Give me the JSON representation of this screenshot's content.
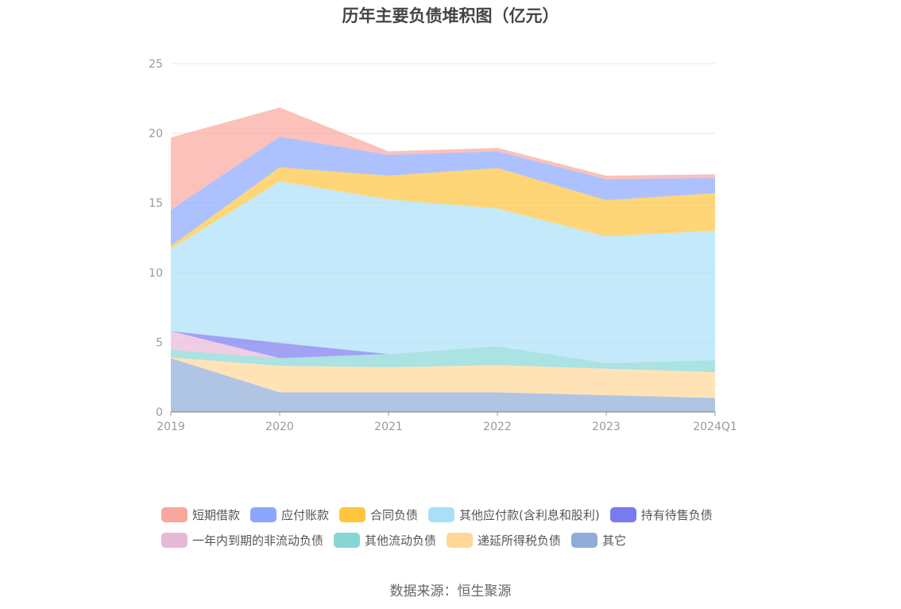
{
  "chart_data": {
    "type": "area",
    "stacked": true,
    "title": "历年主要负债堆积图（亿元）",
    "categories": [
      "2019",
      "2020",
      "2021",
      "2022",
      "2023",
      "2024Q1"
    ],
    "ylim": [
      0,
      25
    ],
    "yticks": [
      0,
      5,
      10,
      15,
      20,
      25
    ],
    "grid": true,
    "legend_position": "bottom",
    "series": [
      {
        "name": "其它",
        "color": "#8fadd9",
        "values": [
          3.85,
          1.4,
          1.4,
          1.4,
          1.2,
          1.0
        ]
      },
      {
        "name": "递延所得税负债",
        "color": "#ffd799",
        "values": [
          0.05,
          1.9,
          1.8,
          1.95,
          1.9,
          1.85
        ]
      },
      {
        "name": "其他流动负债",
        "color": "#87d6d6",
        "values": [
          0.55,
          0.55,
          0.95,
          1.35,
          0.4,
          0.85
        ]
      },
      {
        "name": "一年内到期的非流动负债",
        "color": "#e8b8d8",
        "values": [
          1.35,
          0.0,
          0.0,
          0.0,
          0.0,
          0.0
        ]
      },
      {
        "name": "持有待售负债",
        "color": "#7a7af0",
        "values": [
          0.0,
          1.1,
          0.0,
          0.0,
          0.0,
          0.0
        ]
      },
      {
        "name": "其他应付款(含利息和股利)",
        "color": "#a9e0f8",
        "values": [
          5.9,
          11.6,
          11.1,
          9.9,
          9.1,
          9.3
        ]
      },
      {
        "name": "合同负债",
        "color": "#ffc53d",
        "values": [
          0.2,
          1.0,
          1.7,
          2.9,
          2.6,
          2.7
        ]
      },
      {
        "name": "应付账款",
        "color": "#8ca6ff",
        "values": [
          2.6,
          2.2,
          1.5,
          1.2,
          1.5,
          1.1
        ]
      },
      {
        "name": "短期借款",
        "color": "#f9a79c",
        "values": [
          5.2,
          2.1,
          0.25,
          0.25,
          0.25,
          0.25
        ]
      }
    ]
  },
  "legend_order": [
    "短期借款",
    "应付账款",
    "合同负债",
    "其他应付款(含利息和股利)",
    "持有待售负债",
    "一年内到期的非流动负债",
    "其他流动负债",
    "递延所得税负债",
    "其它"
  ],
  "source": "数据来源：恒生聚源"
}
